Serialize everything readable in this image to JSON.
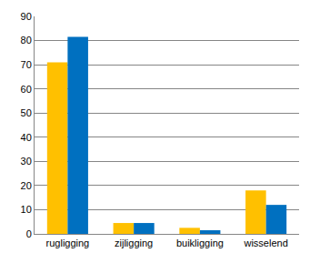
{
  "chart_data": {
    "type": "bar",
    "categories": [
      "rugligging",
      "zijligging",
      "buikligging",
      "wisselend"
    ],
    "series": [
      {
        "color": "#FFC000",
        "values": [
          71,
          4.5,
          2.5,
          18
        ]
      },
      {
        "color": "#0070C0",
        "values": [
          81.5,
          4.5,
          1.5,
          12
        ]
      }
    ],
    "ylim": [
      0,
      90
    ],
    "yticks": [
      0,
      10,
      20,
      30,
      40,
      50,
      60,
      70,
      80,
      90
    ],
    "grid": true
  }
}
